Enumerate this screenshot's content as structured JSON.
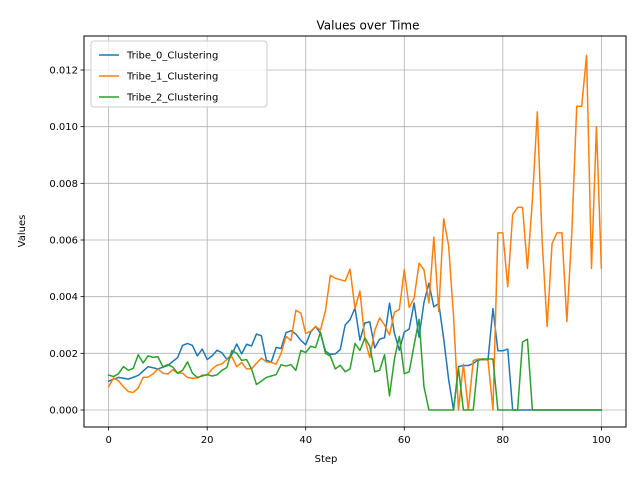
{
  "chart_data": {
    "type": "line",
    "title": "Values over Time",
    "xlabel": "Step",
    "ylabel": "Values",
    "xlim": [
      -5,
      105
    ],
    "ylim": [
      -0.0006,
      0.0132
    ],
    "xticks": [
      0,
      20,
      40,
      60,
      80,
      100
    ],
    "xtick_labels": [
      "0",
      "20",
      "40",
      "60",
      "80",
      "100"
    ],
    "yticks": [
      0.0,
      0.002,
      0.004,
      0.006,
      0.008,
      0.01,
      0.012
    ],
    "ytick_labels": [
      "0.000",
      "0.002",
      "0.004",
      "0.006",
      "0.008",
      "0.010",
      "0.012"
    ],
    "grid": true,
    "legend_position": "top-left",
    "series": [
      {
        "name": "Tribe_0_Clustering",
        "color": "#1f77b4",
        "x": [
          0,
          2,
          4,
          6,
          8,
          10,
          12,
          14,
          15,
          16,
          17,
          18,
          19,
          20,
          21,
          22,
          23,
          24,
          25,
          26,
          27,
          28,
          29,
          30,
          31,
          32,
          33,
          34,
          35,
          36,
          37,
          38,
          39,
          40,
          41,
          42,
          43,
          44,
          45,
          46,
          47,
          48,
          49,
          50,
          51,
          52,
          53,
          54,
          55,
          56,
          57,
          58,
          59,
          60,
          61,
          62,
          63,
          64,
          65,
          66,
          67,
          68,
          69,
          70,
          71,
          72,
          73,
          74,
          75,
          76,
          77,
          78,
          79,
          80,
          81,
          82,
          83,
          84,
          85,
          86,
          87,
          88,
          89,
          90,
          91,
          92,
          93,
          94,
          95,
          96,
          97,
          98,
          99,
          100
        ],
        "values": [
          0.00102,
          0.00115,
          0.00109,
          0.00122,
          0.00153,
          0.00145,
          0.00157,
          0.00185,
          0.00228,
          0.00235,
          0.00228,
          0.00191,
          0.00215,
          0.00178,
          0.00191,
          0.00211,
          0.00202,
          0.00179,
          0.00195,
          0.00233,
          0.00198,
          0.00232,
          0.00226,
          0.00268,
          0.00262,
          0.00176,
          0.00169,
          0.00221,
          0.00217,
          0.00273,
          0.0028,
          0.00268,
          0.00246,
          0.0023,
          0.00275,
          0.00295,
          0.0027,
          0.00208,
          0.00196,
          0.00198,
          0.00213,
          0.003,
          0.00319,
          0.0036,
          0.00246,
          0.00307,
          0.00311,
          0.00219,
          0.0025,
          0.00255,
          0.00377,
          0.00271,
          0.00211,
          0.00275,
          0.00286,
          0.00378,
          0.00257,
          0.0038,
          0.00447,
          0.00364,
          0.00376,
          0.00252,
          0.00108,
          0.0,
          0.00153,
          0.00157,
          0.00157,
          0.00164,
          0.00178,
          0.00178,
          0.00178,
          0.00358,
          0.00209,
          0.00209,
          0.00215,
          0.0,
          0.0,
          0.0,
          0.0,
          0.0,
          0.0,
          0.0,
          0.0,
          0.0,
          0.0,
          0.0,
          0.0,
          0.0,
          0.0,
          0.0,
          0.0,
          0.0,
          0.0,
          0.0
        ]
      },
      {
        "name": "Tribe_1_Clustering",
        "color": "#ff7f0e",
        "x": [
          0,
          1,
          2,
          3,
          4,
          5,
          6,
          7,
          8,
          9,
          10,
          11,
          12,
          13,
          14,
          15,
          16,
          17,
          18,
          19,
          20,
          21,
          22,
          23,
          24,
          25,
          26,
          27,
          28,
          29,
          30,
          31,
          32,
          33,
          34,
          35,
          36,
          37,
          38,
          39,
          40,
          41,
          42,
          43,
          44,
          45,
          46,
          47,
          48,
          49,
          50,
          51,
          52,
          53,
          54,
          55,
          56,
          57,
          58,
          59,
          60,
          61,
          62,
          63,
          64,
          65,
          66,
          67,
          68,
          69,
          70,
          71,
          72,
          73,
          74,
          75,
          76,
          77,
          78,
          79,
          80,
          81,
          82,
          83,
          84,
          85,
          86,
          87,
          88,
          89,
          90,
          91,
          92,
          93,
          94,
          95,
          96,
          97,
          98,
          99,
          100
        ],
        "values": [
          0.00082,
          0.00113,
          0.00103,
          0.00082,
          0.00065,
          0.00062,
          0.00078,
          0.00115,
          0.00116,
          0.00127,
          0.00145,
          0.0013,
          0.00127,
          0.00142,
          0.0013,
          0.0013,
          0.00115,
          0.00112,
          0.00113,
          0.00123,
          0.00123,
          0.00145,
          0.00158,
          0.00163,
          0.00178,
          0.00188,
          0.00153,
          0.00168,
          0.00145,
          0.00145,
          0.00165,
          0.00183,
          0.0017,
          0.00168,
          0.00162,
          0.002,
          0.0026,
          0.00245,
          0.00352,
          0.00342,
          0.0027,
          0.00278,
          0.00295,
          0.00282,
          0.0035,
          0.00475,
          0.00465,
          0.0046,
          0.00455,
          0.00497,
          0.00358,
          0.0042,
          0.0025,
          0.00185,
          0.0028,
          0.00325,
          0.003,
          0.00265,
          0.00345,
          0.00355,
          0.00495,
          0.00362,
          0.00395,
          0.00518,
          0.00495,
          0.00378,
          0.0061,
          0.00348,
          0.00675,
          0.0058,
          0.0033,
          0.0,
          0.00162,
          0.0,
          0.00175,
          0.0018,
          0.0018,
          0.00175,
          0.0,
          0.00625,
          0.00625,
          0.00435,
          0.0069,
          0.00715,
          0.00715,
          0.005,
          0.0074,
          0.01052,
          0.0059,
          0.00295,
          0.00588,
          0.00625,
          0.00625,
          0.00312,
          0.00625,
          0.01072,
          0.01072,
          0.01252,
          0.005,
          0.01,
          0.005
        ]
      },
      {
        "name": "Tribe_2_Clustering",
        "color": "#2ca02c",
        "x": [
          0,
          1,
          2,
          3,
          4,
          5,
          6,
          7,
          8,
          9,
          10,
          11,
          12,
          13,
          14,
          15,
          16,
          17,
          18,
          19,
          20,
          21,
          22,
          23,
          24,
          25,
          26,
          27,
          28,
          29,
          30,
          31,
          32,
          33,
          34,
          35,
          36,
          37,
          38,
          39,
          40,
          41,
          42,
          43,
          44,
          45,
          46,
          47,
          48,
          49,
          50,
          51,
          52,
          53,
          54,
          55,
          56,
          57,
          58,
          59,
          60,
          61,
          62,
          63,
          64,
          65,
          66,
          67,
          68,
          69,
          70,
          71,
          72,
          73,
          74,
          75,
          76,
          77,
          78,
          79,
          80,
          81,
          82,
          83,
          84,
          85,
          86,
          87,
          88,
          89,
          90,
          91,
          92,
          93,
          94,
          95,
          96,
          97,
          98,
          99,
          100
        ],
        "values": [
          0.00123,
          0.00118,
          0.00128,
          0.00153,
          0.0014,
          0.00147,
          0.00195,
          0.00166,
          0.00191,
          0.00186,
          0.00188,
          0.00153,
          0.0016,
          0.00152,
          0.0013,
          0.0014,
          0.0017,
          0.0013,
          0.00115,
          0.0012,
          0.00125,
          0.0012,
          0.00124,
          0.0014,
          0.0015,
          0.0021,
          0.002,
          0.00175,
          0.00178,
          0.00145,
          0.0009,
          0.00102,
          0.00115,
          0.0012,
          0.00125,
          0.0016,
          0.00155,
          0.0016,
          0.0014,
          0.0021,
          0.00203,
          0.00225,
          0.0022,
          0.00275,
          0.002,
          0.0019,
          0.00145,
          0.00158,
          0.00135,
          0.00145,
          0.00235,
          0.0021,
          0.00255,
          0.00225,
          0.00135,
          0.0014,
          0.00195,
          0.0005,
          0.0018,
          0.0026,
          0.00128,
          0.00135,
          0.0023,
          0.0032,
          0.00082,
          0.0,
          0.0,
          0.0,
          0.0,
          0.0,
          0.0,
          0.00148,
          0.0,
          0.0,
          0.0,
          0.00175,
          0.0018,
          0.0018,
          0.0018,
          0.0,
          0.0,
          0.0,
          0.0,
          0.0,
          0.0024,
          0.0025,
          0.0,
          0.0,
          0.0,
          0.0,
          0.0,
          0.0,
          0.0,
          0.0,
          0.0,
          0.0,
          0.0,
          0.0,
          0.0,
          0.0,
          0.0
        ]
      }
    ]
  }
}
